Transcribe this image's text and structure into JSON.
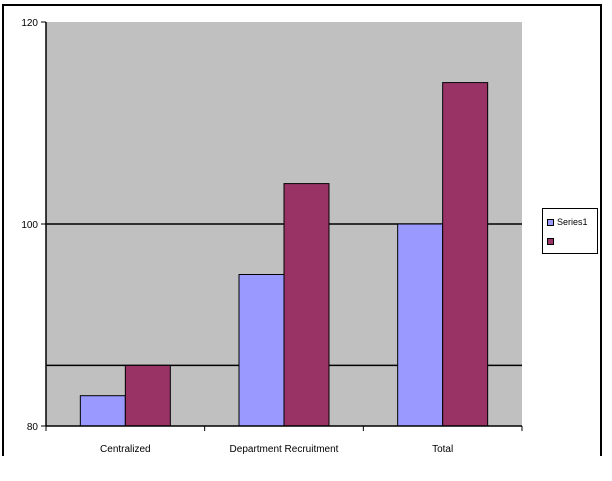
{
  "chart_data": {
    "type": "bar",
    "title": "",
    "xlabel": "",
    "ylabel": "",
    "categories": [
      "Centralized",
      "Department Recruitment",
      "Total"
    ],
    "series": [
      {
        "name": "Series1",
        "values": [
          83,
          95,
          100
        ],
        "color": "#9999ff"
      },
      {
        "name": "",
        "values": [
          86,
          104,
          114
        ],
        "color": "#993366"
      }
    ],
    "ylim": [
      80,
      120
    ],
    "yticks": [
      80,
      100,
      120
    ],
    "gridlines": [
      86,
      100
    ],
    "plot_background": "#c0c0c0",
    "grid": true,
    "legend_placement": "right"
  }
}
